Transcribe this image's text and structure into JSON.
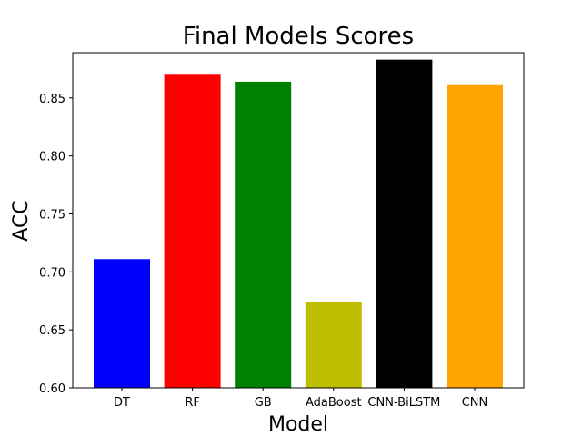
{
  "chart_data": {
    "type": "bar",
    "title": "Final Models Scores",
    "xlabel": "Model",
    "ylabel": "ACC",
    "categories": [
      "DT",
      "RF",
      "GB",
      "AdaBoost",
      "CNN-BiLSTM",
      "CNN"
    ],
    "values": [
      0.711,
      0.87,
      0.864,
      0.674,
      0.883,
      0.861
    ],
    "colors": [
      "#0000ff",
      "#ff0000",
      "#008000",
      "#bfbf00",
      "#000000",
      "#ffa500"
    ],
    "ylim": [
      0.6,
      0.889
    ],
    "yticks": [
      "0.60",
      "0.65",
      "0.70",
      "0.75",
      "0.80",
      "0.85"
    ],
    "grid": false
  }
}
